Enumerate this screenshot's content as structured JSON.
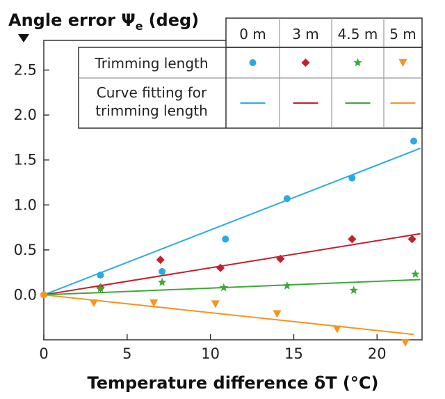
{
  "chart_data": {
    "type": "scatter",
    "ylabel": "Angle error Ψ",
    "ylabel_subscript": "e",
    "ylabel_unit": "(deg)",
    "xlabel": "Temperature difference δT (°C)",
    "xlim": [
      0,
      22.7
    ],
    "ylim": [
      -0.5,
      2.83
    ],
    "x_ticks": [
      0,
      5,
      10,
      15,
      20
    ],
    "y_ticks": [
      0.0,
      0.5,
      1.0,
      1.5,
      2.0,
      2.5
    ],
    "x_tick_labels": [
      "0",
      "5",
      "10",
      "15",
      "20"
    ],
    "y_tick_labels": [
      "0.0",
      "0.5",
      "1.0",
      "1.5",
      "2.0",
      "2.5"
    ],
    "legend": {
      "row_labels": [
        "Trimming length",
        "Curve fitting for trimming length"
      ],
      "placement": "top-right"
    },
    "series": [
      {
        "name": "0 m",
        "color": "#29abe2",
        "marker": "circle",
        "points": [
          [
            0,
            0.0
          ],
          [
            3.4,
            0.22
          ],
          [
            7.1,
            0.26
          ],
          [
            10.9,
            0.62
          ],
          [
            14.6,
            1.07
          ],
          [
            18.5,
            1.3
          ],
          [
            22.2,
            1.71
          ]
        ],
        "fit": [
          [
            0,
            0.0
          ],
          [
            22.6,
            1.63
          ]
        ]
      },
      {
        "name": "3 m",
        "color": "#c4202b",
        "marker": "diamond",
        "points": [
          [
            0,
            0.0
          ],
          [
            3.4,
            0.08
          ],
          [
            7.0,
            0.39
          ],
          [
            10.6,
            0.3
          ],
          [
            14.2,
            0.4
          ],
          [
            18.5,
            0.62
          ],
          [
            22.1,
            0.62
          ]
        ],
        "fit": [
          [
            0,
            0.0
          ],
          [
            22.6,
            0.68
          ]
        ]
      },
      {
        "name": "4.5 m",
        "color": "#3aaa35",
        "marker": "star",
        "points": [
          [
            0,
            0.0
          ],
          [
            3.4,
            0.07
          ],
          [
            7.1,
            0.14
          ],
          [
            10.8,
            0.08
          ],
          [
            14.6,
            0.1
          ],
          [
            18.6,
            0.05
          ],
          [
            22.3,
            0.23
          ]
        ],
        "fit": [
          [
            0,
            0.0
          ],
          [
            22.6,
            0.17
          ]
        ]
      },
      {
        "name": "5 m",
        "color": "#f7941d",
        "marker": "triangle-down",
        "points": [
          [
            0,
            0.0
          ],
          [
            3.0,
            -0.09
          ],
          [
            6.6,
            -0.09
          ],
          [
            10.3,
            -0.1
          ],
          [
            14.0,
            -0.21
          ],
          [
            17.6,
            -0.38
          ],
          [
            21.7,
            -0.53
          ]
        ],
        "fit": [
          [
            0,
            0.0
          ],
          [
            22.2,
            -0.44
          ]
        ]
      }
    ]
  }
}
